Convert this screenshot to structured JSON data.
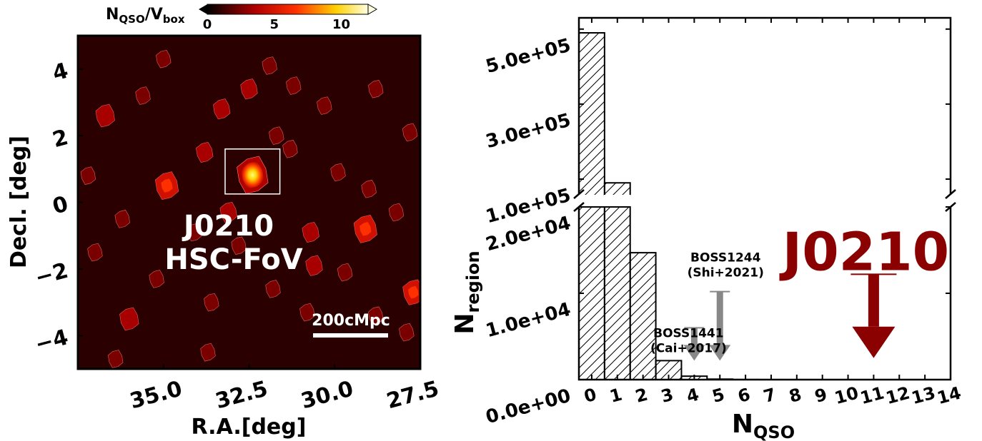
{
  "chart_data": [
    {
      "type": "heatmap",
      "xlabel": "R.A.[deg]",
      "ylabel": "Decl. [deg]",
      "xlim": [
        37.5,
        27.5
      ],
      "ylim": [
        -5,
        5
      ],
      "xticks": [
        "35.0",
        "32.5",
        "30.0",
        "27.5"
      ],
      "yticks": [
        "4",
        "2",
        "0",
        "−2",
        "−4"
      ],
      "colorbar": {
        "label_main": "N",
        "label_sub1": "QSO",
        "label_sep": "/V",
        "label_sub2": "box",
        "range": [
          0,
          12
        ],
        "ticks": [
          "0",
          "5",
          "10"
        ]
      },
      "annotations": {
        "field_name": "J0210",
        "field_sub": "HSC-FoV",
        "scale_bar": "200cMpc"
      },
      "highlight_box": {
        "ra_range": [
          33.2,
          31.6
        ],
        "dec_range": [
          0.25,
          1.6
        ]
      },
      "peaks": [
        {
          "ra": 32.4,
          "dec": 0.82,
          "v": 12
        },
        {
          "ra": 34.9,
          "dec": 0.5,
          "v": 6
        },
        {
          "ra": 29.1,
          "dec": -0.8,
          "v": 6
        },
        {
          "ra": 27.7,
          "dec": -2.7,
          "v": 5
        },
        {
          "ra": 36.0,
          "dec": -3.5,
          "v": 4
        },
        {
          "ra": 36.7,
          "dec": 2.6,
          "v": 4
        },
        {
          "ra": 33.3,
          "dec": 2.8,
          "v": 3
        },
        {
          "ra": 32.5,
          "dec": 3.4,
          "v": 3
        },
        {
          "ra": 33.8,
          "dec": 1.5,
          "v": 3
        },
        {
          "ra": 33.1,
          "dec": -0.3,
          "v": 3
        },
        {
          "ra": 30.7,
          "dec": -0.9,
          "v": 3
        },
        {
          "ra": 30.6,
          "dec": -1.9,
          "v": 3
        },
        {
          "ra": 35.2,
          "dec": -2.3,
          "v": 2
        },
        {
          "ra": 36.2,
          "dec": -0.5,
          "v": 2
        },
        {
          "ra": 34.1,
          "dec": -0.9,
          "v": 2
        },
        {
          "ra": 32.8,
          "dec": -1.3,
          "v": 2
        },
        {
          "ra": 29.9,
          "dec": 0.9,
          "v": 2
        },
        {
          "ra": 28.2,
          "dec": -0.3,
          "v": 2
        },
        {
          "ra": 29.7,
          "dec": -2.1,
          "v": 2
        },
        {
          "ra": 28.8,
          "dec": -3.4,
          "v": 2
        },
        {
          "ra": 31.8,
          "dec": -2.6,
          "v": 2
        },
        {
          "ra": 33.6,
          "dec": -3.0,
          "v": 2
        },
        {
          "ra": 36.4,
          "dec": -4.7,
          "v": 2
        },
        {
          "ra": 31.2,
          "dec": 3.5,
          "v": 2
        },
        {
          "ra": 31.7,
          "dec": 2.0,
          "v": 2
        },
        {
          "ra": 30.3,
          "dec": 2.9,
          "v": 2
        },
        {
          "ra": 28.8,
          "dec": 3.4,
          "v": 2
        },
        {
          "ra": 31.3,
          "dec": 1.6,
          "v": 2
        },
        {
          "ra": 27.8,
          "dec": 2.1,
          "v": 2
        },
        {
          "ra": 30.8,
          "dec": -3.3,
          "v": 2
        },
        {
          "ra": 27.9,
          "dec": -3.9,
          "v": 2
        },
        {
          "ra": 33.7,
          "dec": -4.5,
          "v": 2
        },
        {
          "ra": 31.9,
          "dec": 4.1,
          "v": 2
        },
        {
          "ra": 35.6,
          "dec": 3.2,
          "v": 2
        },
        {
          "ra": 37.2,
          "dec": 0.8,
          "v": 2
        },
        {
          "ra": 37.0,
          "dec": -1.5,
          "v": 2
        },
        {
          "ra": 29.0,
          "dec": 0.4,
          "v": 2
        },
        {
          "ra": 35.0,
          "dec": 4.3,
          "v": 2
        }
      ]
    },
    {
      "type": "bar",
      "xlabel_main": "N",
      "xlabel_sub": "QSO",
      "ylabel_main": "N",
      "ylabel_sub": "region",
      "categories": [
        "0",
        "1",
        "2",
        "3",
        "4",
        "5",
        "6",
        "7",
        "8",
        "9",
        "10",
        "11",
        "12",
        "13",
        "14"
      ],
      "x": [
        0,
        1,
        2,
        3,
        4,
        5,
        6,
        7,
        8,
        9,
        10,
        11,
        12,
        13
      ],
      "values": [
        490000,
        90000,
        14700,
        2200,
        400,
        60,
        10,
        3,
        1,
        0,
        0,
        0,
        0,
        0
      ],
      "xlim": [
        -0.5,
        14
      ],
      "ylim_upper": [
        60000,
        530000
      ],
      "ylim_lower": [
        0,
        20000
      ],
      "yticks_upper": [
        {
          "v": 100000,
          "label": "1.0e+05"
        },
        {
          "v": 300000,
          "label": "3.0e+05"
        },
        {
          "v": 500000,
          "label": "5.0e+05"
        }
      ],
      "yticks_lower": [
        {
          "v": 0,
          "label": "0.0e+00"
        },
        {
          "v": 10000,
          "label": "1.0e+04"
        },
        {
          "v": 20000,
          "label": "2.0e+04"
        }
      ],
      "hatch": "diagonal",
      "annotations": [
        {
          "label": "J0210",
          "line2": "",
          "x": 11,
          "y_top": 12200,
          "y_tip": 2500,
          "color": "#8b0000"
        },
        {
          "label": "BOSS1244",
          "line2": "(Shi+2021)",
          "x": 5,
          "y_top": 10200,
          "y_tip": 2200,
          "color": "#888888"
        },
        {
          "label": "BOSS1441",
          "line2": "(Cai+2017)",
          "x": 4,
          "y_top": 6000,
          "y_tip": 2200,
          "color": "#888888"
        }
      ]
    }
  ]
}
